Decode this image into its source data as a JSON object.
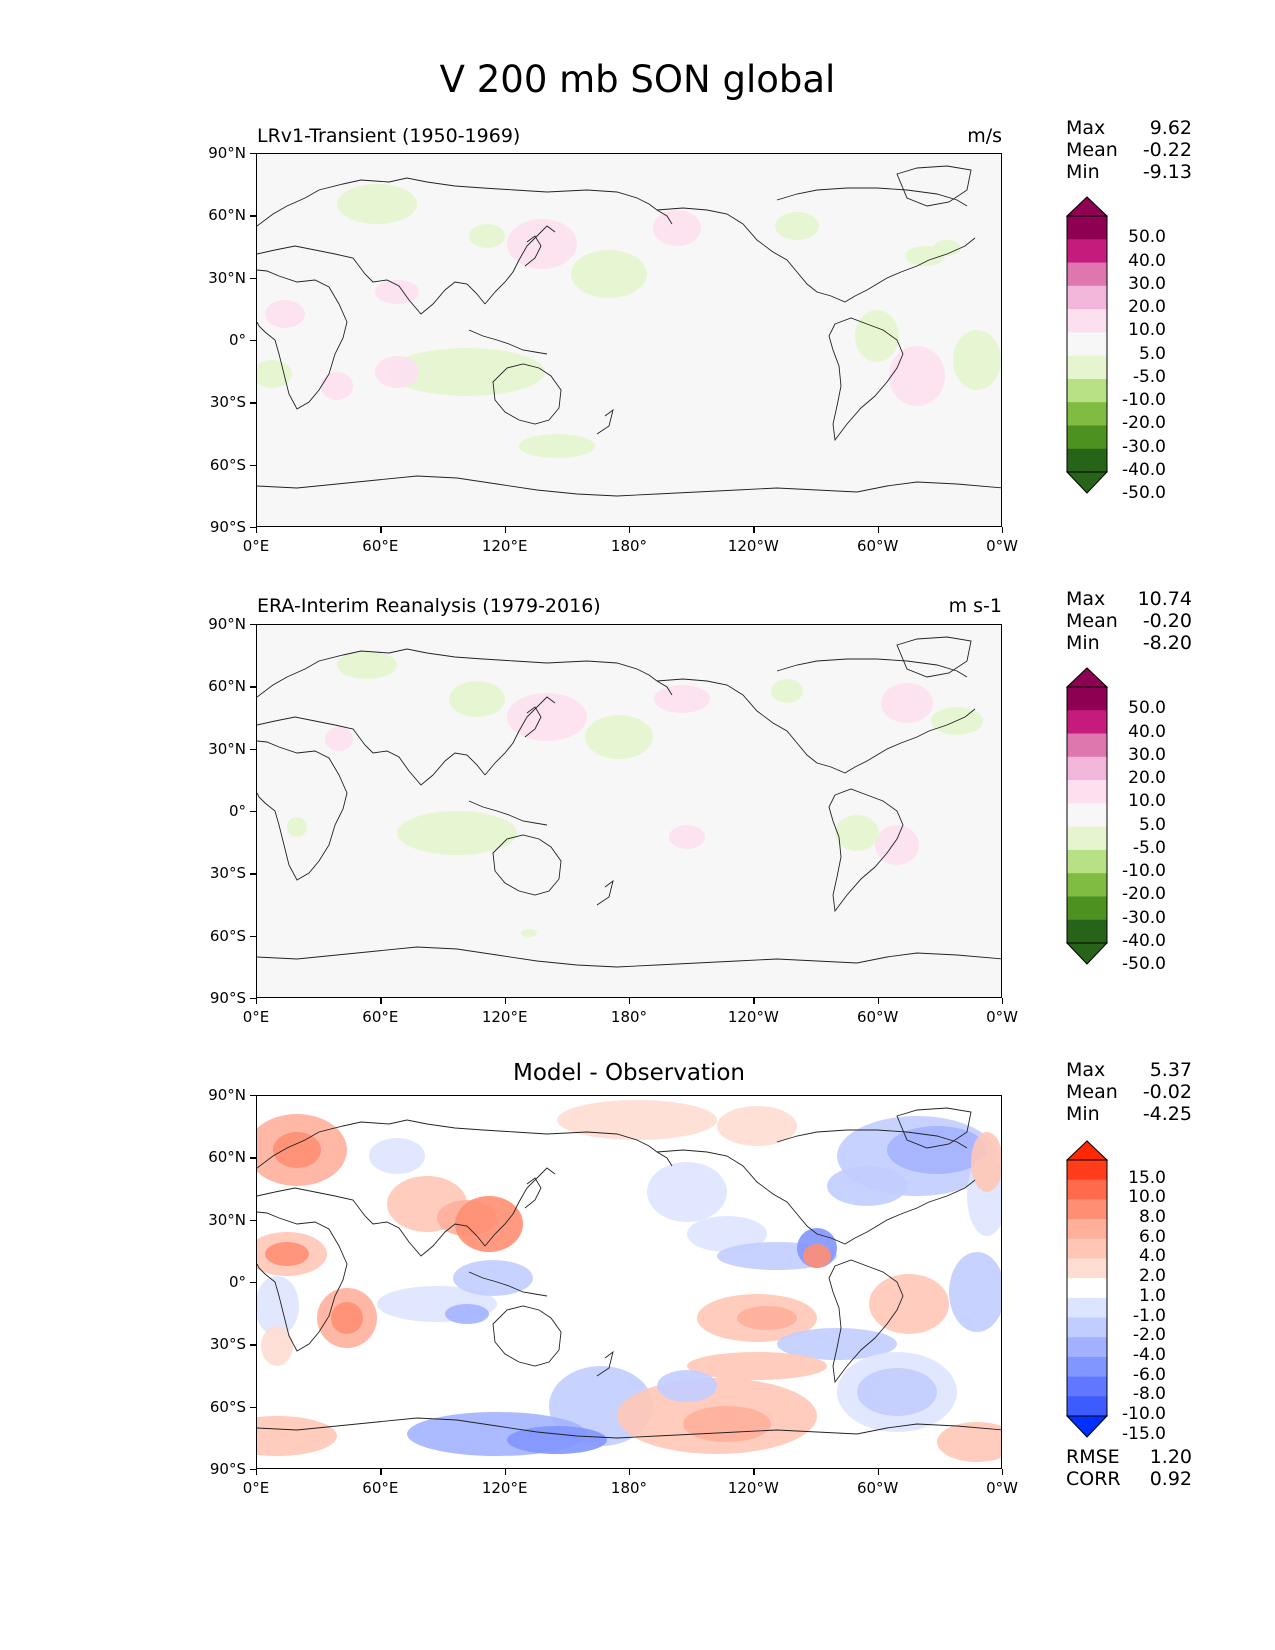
{
  "title": "V 200 mb SON global",
  "lat_ticks": [
    "90°N",
    "60°N",
    "30°N",
    "0°",
    "30°S",
    "60°S",
    "90°S"
  ],
  "lon_ticks": [
    "0°E",
    "60°E",
    "120°E",
    "180°",
    "120°W",
    "60°W",
    "0°W"
  ],
  "panels": [
    {
      "title": "LRv1-Transient (1950-1969)",
      "units": "m/s",
      "stats": {
        "max_label": "Max",
        "max": "9.62",
        "mean_label": "Mean",
        "mean": "-0.22",
        "min_label": "Min",
        "min": "-9.13"
      },
      "colorbar": {
        "labels": [
          "50.0",
          "40.0",
          "30.0",
          "20.0",
          "10.0",
          "5.0",
          "-5.0",
          "-10.0",
          "-20.0",
          "-30.0",
          "-40.0",
          "-50.0"
        ],
        "colors": [
          "#8e0152",
          "#c51b7d",
          "#de77ae",
          "#f1b6da",
          "#fde0ef",
          "#f7f7f7",
          "#e6f5d0",
          "#b8e186",
          "#7fbc41",
          "#4d9221",
          "#276419"
        ],
        "over": "#8e0152",
        "under": "#276419"
      }
    },
    {
      "title": "ERA-Interim Reanalysis (1979-2016)",
      "units": "m s-1",
      "stats": {
        "max_label": "Max",
        "max": "10.74",
        "mean_label": "Mean",
        "mean": "-0.20",
        "min_label": "Min",
        "min": "-8.20"
      },
      "colorbar": {
        "labels": [
          "50.0",
          "40.0",
          "30.0",
          "20.0",
          "10.0",
          "5.0",
          "-5.0",
          "-10.0",
          "-20.0",
          "-30.0",
          "-40.0",
          "-50.0"
        ],
        "colors": [
          "#8e0152",
          "#c51b7d",
          "#de77ae",
          "#f1b6da",
          "#fde0ef",
          "#f7f7f7",
          "#e6f5d0",
          "#b8e186",
          "#7fbc41",
          "#4d9221",
          "#276419"
        ],
        "over": "#8e0152",
        "under": "#276419"
      }
    },
    {
      "title": "Model - Observation",
      "units": "",
      "stats": {
        "max_label": "Max",
        "max": "5.37",
        "mean_label": "Mean",
        "mean": "-0.02",
        "min_label": "Min",
        "min": "-4.25"
      },
      "colorbar": {
        "labels": [
          "15.0",
          "10.0",
          "8.0",
          "6.0",
          "4.0",
          "2.0",
          "1.0",
          "-1.0",
          "-2.0",
          "-4.0",
          "-6.0",
          "-8.0",
          "-10.0",
          "-15.0"
        ],
        "colors": [
          "#ff3d1a",
          "#ff6a4a",
          "#ff8f73",
          "#ffb09b",
          "#ffc6b6",
          "#ffddd3",
          "#ffffff",
          "#dde4ff",
          "#c2cdff",
          "#a3b2ff",
          "#8296ff",
          "#5f78ff",
          "#3d5cff"
        ],
        "over": "#ff2a00",
        "under": "#0030ff"
      },
      "footer": {
        "rmse_label": "RMSE",
        "rmse": "1.20",
        "corr_label": "CORR",
        "corr": "0.92"
      }
    }
  ]
}
